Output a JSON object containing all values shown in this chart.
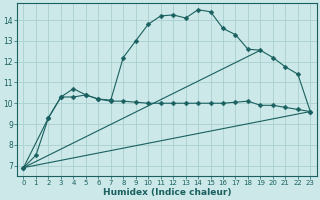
{
  "xlabel": "Humidex (Indice chaleur)",
  "xlim": [
    -0.5,
    23.5
  ],
  "ylim": [
    6.5,
    14.8
  ],
  "xticks": [
    0,
    1,
    2,
    3,
    4,
    5,
    6,
    7,
    8,
    9,
    10,
    11,
    12,
    13,
    14,
    15,
    16,
    17,
    18,
    19,
    20,
    21,
    22,
    23
  ],
  "yticks": [
    7,
    8,
    9,
    10,
    11,
    12,
    13,
    14
  ],
  "bg_color": "#cce8e8",
  "grid_color": "#aad0d0",
  "line_color": "#1a6060",
  "lines": [
    {
      "x": [
        0,
        1,
        2,
        3,
        4,
        5,
        6,
        7,
        8,
        9,
        10,
        11,
        12,
        13,
        14,
        15,
        16,
        17,
        18,
        19,
        20,
        21,
        22,
        23
      ],
      "y": [
        6.9,
        7.5,
        9.3,
        10.3,
        10.3,
        10.4,
        10.2,
        10.15,
        12.2,
        13.0,
        13.8,
        14.2,
        14.25,
        14.1,
        14.5,
        14.4,
        13.6,
        13.3,
        12.6,
        12.55,
        12.2,
        11.75,
        11.4,
        9.6
      ],
      "marker": "D",
      "markersize": 2.5
    },
    {
      "x": [
        0,
        2,
        3,
        4,
        5,
        6,
        7,
        8,
        9,
        10,
        11,
        12,
        13,
        14,
        15,
        16,
        17,
        18,
        19,
        20,
        21,
        22,
        23
      ],
      "y": [
        6.9,
        9.3,
        10.3,
        10.7,
        10.4,
        10.2,
        10.1,
        10.1,
        10.05,
        10.0,
        10.0,
        10.0,
        10.0,
        10.0,
        10.0,
        10.0,
        10.05,
        10.1,
        9.9,
        9.9,
        9.8,
        9.7,
        9.6
      ],
      "marker": "D",
      "markersize": 2.5
    },
    {
      "x": [
        0,
        23
      ],
      "y": [
        6.9,
        9.6
      ],
      "marker": null,
      "markersize": 0
    },
    {
      "x": [
        0,
        19
      ],
      "y": [
        6.9,
        12.55
      ],
      "marker": null,
      "markersize": 0
    }
  ]
}
